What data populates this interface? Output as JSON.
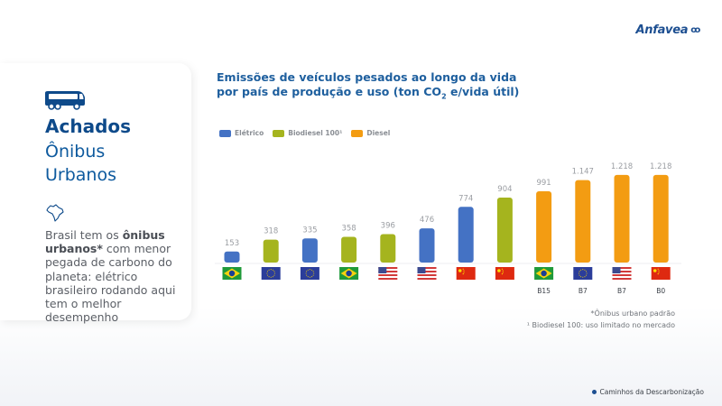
{
  "brand": {
    "logo_text": "Anfavea",
    "logo_mark": "ꝏ"
  },
  "sidebar": {
    "heading": "Achados",
    "subtitle_line1": "Ônibus",
    "subtitle_line2": "Urbanos",
    "desc_part1": "Brasil tem os ",
    "desc_bold1": "ônibus urbanos*",
    "desc_part2": " com menor pegada de carbono do planeta: elétrico brasileiro rodando aqui tem o melhor desempenho"
  },
  "notes": {
    "line1": "*Ônibus urbano padrão",
    "line2": "¹ Biodiesel 100: uso limitado no mercado"
  },
  "footer": {
    "label": "Caminhos da Descarbonização"
  },
  "colors": {
    "eletrico": "#4472c4",
    "biodiesel": "#a5b41e",
    "diesel": "#f39c12",
    "brand": "#1d4f91"
  },
  "chart_data": {
    "type": "bar",
    "title_line1": "Emissões de veículos pesados ao longo da vida",
    "title_line2_pre": "por país de produção e uso (ton CO",
    "title_sub": "2",
    "title_line2_post": " e/vida útil)",
    "legend": [
      {
        "name": "Elétrico",
        "key": "eletrico"
      },
      {
        "name": "Biodiesel 100¹",
        "key": "biodiesel"
      },
      {
        "name": "Diesel",
        "key": "diesel"
      }
    ],
    "ylim": [
      0,
      1300
    ],
    "bars": [
      {
        "label": "153",
        "value": 153,
        "series": "eletrico",
        "country": "brazil",
        "fuel": ""
      },
      {
        "label": "318",
        "value": 318,
        "series": "biodiesel",
        "country": "eu",
        "fuel": ""
      },
      {
        "label": "335",
        "value": 335,
        "series": "eletrico",
        "country": "eu",
        "fuel": ""
      },
      {
        "label": "358",
        "value": 358,
        "series": "biodiesel",
        "country": "brazil",
        "fuel": ""
      },
      {
        "label": "396",
        "value": 396,
        "series": "biodiesel",
        "country": "usa",
        "fuel": ""
      },
      {
        "label": "476",
        "value": 476,
        "series": "eletrico",
        "country": "usa",
        "fuel": ""
      },
      {
        "label": "774",
        "value": 774,
        "series": "eletrico",
        "country": "china",
        "fuel": ""
      },
      {
        "label": "904",
        "value": 904,
        "series": "biodiesel",
        "country": "china",
        "fuel": ""
      },
      {
        "label": "991",
        "value": 991,
        "series": "diesel",
        "country": "brazil",
        "fuel": "B15"
      },
      {
        "label": "1.147",
        "value": 1147,
        "series": "diesel",
        "country": "eu",
        "fuel": "B7"
      },
      {
        "label": "1.218",
        "value": 1218,
        "series": "diesel",
        "country": "usa",
        "fuel": "B7"
      },
      {
        "label": "1.218",
        "value": 1218,
        "series": "diesel",
        "country": "china",
        "fuel": "B0"
      }
    ]
  }
}
